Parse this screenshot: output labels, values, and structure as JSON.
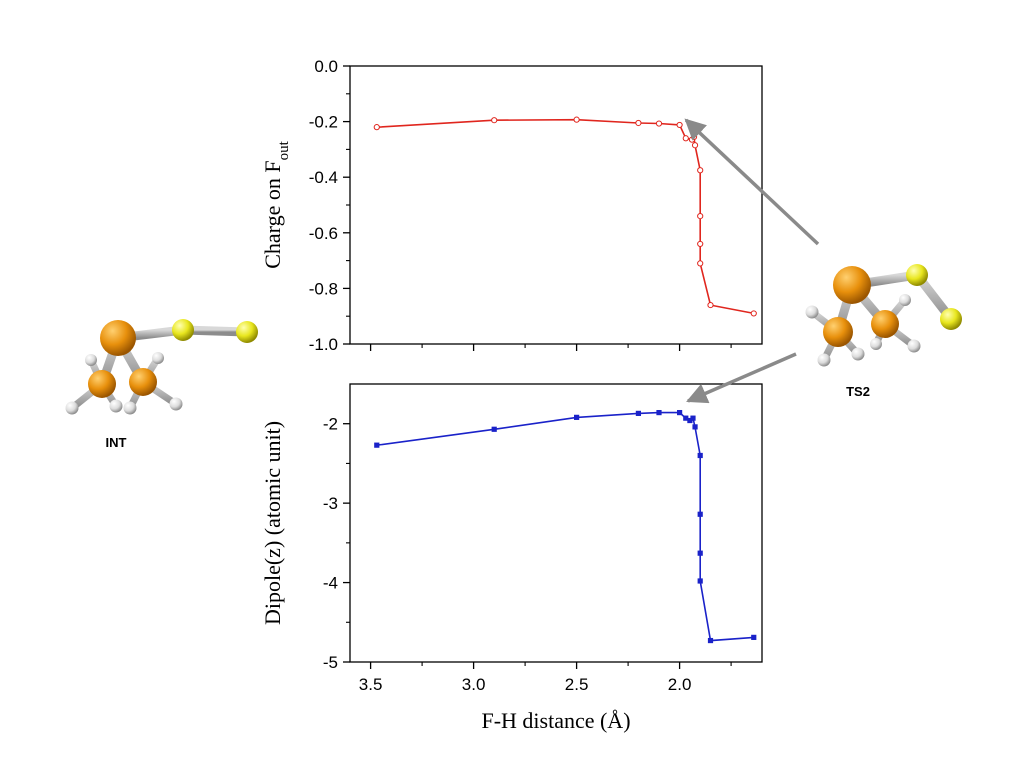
{
  "chart_data": [
    {
      "type": "line",
      "ylabel": "Charge on F",
      "ylabel_sub": "out",
      "xlim": [
        3.6,
        1.6
      ],
      "ylim": [
        -1.0,
        0.0
      ],
      "yticks": [
        "0.0",
        "-0.2",
        "-0.4",
        "-0.6",
        "-0.8",
        "-1.0"
      ],
      "ytick_values": [
        0.0,
        -0.2,
        -0.4,
        -0.6,
        -0.8,
        -1.0
      ],
      "series": [
        {
          "marker": "open-circle",
          "color": "#e0261e",
          "x": [
            3.47,
            2.9,
            2.5,
            2.2,
            2.1,
            2.0,
            1.97,
            1.94,
            1.93,
            1.925,
            1.9,
            1.9,
            1.9,
            1.9,
            1.85,
            1.64
          ],
          "y": [
            -0.22,
            -0.195,
            -0.193,
            -0.205,
            -0.207,
            -0.212,
            -0.26,
            -0.265,
            -0.255,
            -0.285,
            -0.375,
            -0.54,
            -0.64,
            -0.71,
            -0.86,
            -0.89
          ]
        }
      ]
    },
    {
      "type": "line",
      "ylabel": "Dipole(z) (atomic unit)",
      "xlabel": "F-H distance (Å)",
      "xlim": [
        3.6,
        1.6
      ],
      "ylim": [
        -5,
        -1.5
      ],
      "xticks": [
        "3.5",
        "3.0",
        "2.5",
        "2.0"
      ],
      "xtick_values": [
        3.5,
        3.0,
        2.5,
        2.0
      ],
      "yticks": [
        "-2",
        "-3",
        "-4",
        "-5"
      ],
      "ytick_values": [
        -2,
        -3,
        -4,
        -5
      ],
      "series": [
        {
          "marker": "filled-square",
          "color": "#1a22c9",
          "x": [
            3.47,
            2.9,
            2.5,
            2.2,
            2.1,
            2.0,
            1.97,
            1.95,
            1.935,
            1.925,
            1.9,
            1.9,
            1.9,
            1.9,
            1.85,
            1.64
          ],
          "y": [
            -2.27,
            -2.07,
            -1.92,
            -1.87,
            -1.86,
            -1.86,
            -1.93,
            -1.96,
            -1.93,
            -2.04,
            -2.4,
            -3.14,
            -3.63,
            -3.98,
            -4.73,
            -4.69
          ]
        }
      ]
    }
  ],
  "labels": {
    "int": "INT",
    "ts2": "TS2"
  },
  "colors": {
    "arrow": "#8a8a8a",
    "gold_atom": "#e8900c",
    "big_atom": "#e39a1a",
    "yellow_atom": "#e8e61e",
    "hydrogen": "#e6e6e6",
    "bond": "#a8a8a8"
  }
}
